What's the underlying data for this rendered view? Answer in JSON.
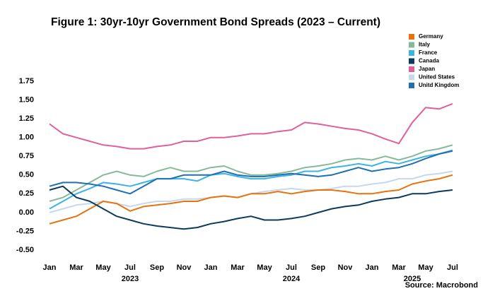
{
  "chart_data": {
    "type": "line",
    "title": "Figure 1: 30yr-10yr Government Bond Spreads (2023 – Current)",
    "source": "Source: Macrobond",
    "x": [
      "2023-01",
      "2023-02",
      "2023-03",
      "2023-04",
      "2023-05",
      "2023-06",
      "2023-07",
      "2023-08",
      "2023-09",
      "2023-10",
      "2023-11",
      "2023-12",
      "2024-01",
      "2024-02",
      "2024-03",
      "2024-04",
      "2024-05",
      "2024-06",
      "2024-07",
      "2024-08",
      "2024-09",
      "2024-10",
      "2024-11",
      "2024-12",
      "2025-01",
      "2025-02",
      "2025-03",
      "2025-04",
      "2025-05",
      "2025-06",
      "2025-07"
    ],
    "xlim": [
      "2023-01",
      "2025-07"
    ],
    "xticks": [
      {
        "value": "2023-01",
        "label": "Jan"
      },
      {
        "value": "2023-03",
        "label": "Mar"
      },
      {
        "value": "2023-05",
        "label": "May"
      },
      {
        "value": "2023-07",
        "label": "Jul"
      },
      {
        "value": "2023-09",
        "label": "Sep"
      },
      {
        "value": "2023-11",
        "label": "Nov"
      },
      {
        "value": "2024-01",
        "label": "Jan"
      },
      {
        "value": "2024-03",
        "label": "Mar"
      },
      {
        "value": "2024-05",
        "label": "May"
      },
      {
        "value": "2024-07",
        "label": "Jul"
      },
      {
        "value": "2024-09",
        "label": "Sep"
      },
      {
        "value": "2024-11",
        "label": "Nov"
      },
      {
        "value": "2025-01",
        "label": "Jan"
      },
      {
        "value": "2025-03",
        "label": "Mar"
      },
      {
        "value": "2025-05",
        "label": "May"
      },
      {
        "value": "2025-07",
        "label": "Jul"
      }
    ],
    "year_labels": [
      {
        "value": "2023-07",
        "label": "2023"
      },
      {
        "value": "2024-07",
        "label": "2024"
      },
      {
        "value": "2025-04",
        "label": "2025"
      }
    ],
    "ylim": [
      -0.5,
      1.75
    ],
    "yticks": [
      {
        "value": -0.5,
        "label": "-0.50"
      },
      -0.25,
      {
        "value": 0,
        "label": "0.00"
      },
      0.25,
      {
        "value": 0.5,
        "label": "0.50"
      },
      0.75,
      {
        "value": 1,
        "label": "1.00"
      },
      1.25,
      {
        "value": 1.5,
        "label": "1.50"
      },
      1.75
    ],
    "grid": false,
    "legend": "top-right",
    "series": [
      {
        "name": "Germany",
        "color": "#e8720c",
        "values": [
          -0.15,
          -0.1,
          -0.05,
          0.05,
          0.15,
          0.12,
          0.02,
          0.08,
          0.1,
          0.12,
          0.15,
          0.15,
          0.2,
          0.22,
          0.2,
          0.25,
          0.25,
          0.28,
          0.25,
          0.28,
          0.3,
          0.3,
          0.28,
          0.25,
          0.25,
          0.28,
          0.3,
          0.38,
          0.42,
          0.45,
          0.5
        ]
      },
      {
        "name": "Italy",
        "color": "#86b99a",
        "values": [
          0.15,
          0.2,
          0.3,
          0.4,
          0.5,
          0.55,
          0.5,
          0.48,
          0.55,
          0.6,
          0.55,
          0.55,
          0.6,
          0.62,
          0.55,
          0.5,
          0.5,
          0.52,
          0.55,
          0.6,
          0.62,
          0.65,
          0.7,
          0.72,
          0.7,
          0.75,
          0.7,
          0.75,
          0.82,
          0.85,
          0.9
        ]
      },
      {
        "name": "France",
        "color": "#3db3e3",
        "values": [
          0.05,
          0.15,
          0.25,
          0.32,
          0.4,
          0.38,
          0.35,
          0.4,
          0.45,
          0.45,
          0.45,
          0.42,
          0.5,
          0.52,
          0.48,
          0.45,
          0.45,
          0.48,
          0.5,
          0.55,
          0.55,
          0.6,
          0.62,
          0.65,
          0.62,
          0.68,
          0.65,
          0.7,
          0.75,
          0.78,
          0.83
        ]
      },
      {
        "name": "Canada",
        "color": "#0c3a5e",
        "values": [
          0.3,
          0.35,
          0.2,
          0.15,
          0.05,
          -0.05,
          -0.1,
          -0.15,
          -0.18,
          -0.2,
          -0.22,
          -0.2,
          -0.15,
          -0.12,
          -0.08,
          -0.05,
          -0.1,
          -0.1,
          -0.08,
          -0.05,
          0,
          0.05,
          0.08,
          0.1,
          0.15,
          0.18,
          0.2,
          0.25,
          0.25,
          0.28,
          0.3
        ]
      },
      {
        "name": "Japan",
        "color": "#e0609a",
        "values": [
          1.18,
          1.05,
          1.0,
          0.95,
          0.9,
          0.88,
          0.85,
          0.85,
          0.88,
          0.9,
          0.95,
          0.95,
          1.0,
          1.0,
          1.02,
          1.05,
          1.05,
          1.08,
          1.1,
          1.2,
          1.18,
          1.15,
          1.12,
          1.1,
          1.05,
          0.98,
          0.92,
          1.2,
          1.4,
          1.38,
          1.45
        ]
      },
      {
        "name": "United States",
        "color": "#c6d8ec",
        "values": [
          0,
          0.05,
          0.1,
          0.12,
          0.15,
          0.12,
          0.08,
          0.12,
          0.15,
          0.15,
          0.18,
          0.18,
          0.2,
          0.22,
          0.2,
          0.25,
          0.28,
          0.3,
          0.32,
          0.3,
          0.3,
          0.32,
          0.35,
          0.35,
          0.38,
          0.4,
          0.45,
          0.45,
          0.5,
          0.52,
          0.55
        ]
      },
      {
        "name": "Unitd Kingdom",
        "color": "#1f6fb2",
        "values": [
          0.35,
          0.4,
          0.4,
          0.38,
          0.35,
          0.3,
          0.25,
          0.35,
          0.45,
          0.45,
          0.5,
          0.5,
          0.5,
          0.55,
          0.5,
          0.48,
          0.48,
          0.5,
          0.52,
          0.5,
          0.48,
          0.5,
          0.55,
          0.6,
          0.55,
          0.58,
          0.6,
          0.65,
          0.72,
          0.78,
          0.82
        ]
      }
    ]
  }
}
